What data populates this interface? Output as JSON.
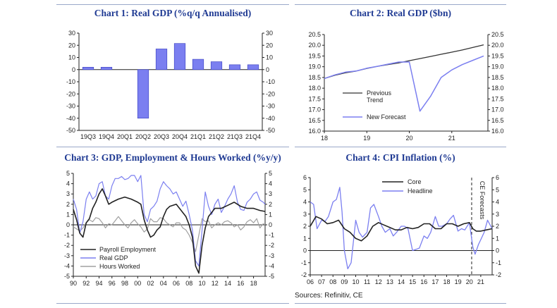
{
  "source_note": "Sources: Refinitiv, CE",
  "chart_data": [
    {
      "id": "c1",
      "type": "bar",
      "title": "Chart 1: Real GDP (%q/q Annualised)",
      "categories": [
        "19Q3",
        "19Q4",
        "20Q1",
        "20Q2",
        "20Q3",
        "20Q4",
        "21Q1",
        "21Q2",
        "21Q3",
        "21Q4"
      ],
      "values": [
        2.0,
        2.0,
        0,
        -40,
        17,
        21.5,
        8.5,
        6.5,
        4.0,
        4.0
      ],
      "ylim": [
        -50,
        30
      ],
      "yticks": [
        "30",
        "20",
        "10",
        "0",
        "-10",
        "-20",
        "-30",
        "-40",
        "-50"
      ],
      "bar_color": "#7b7ff0",
      "bar_border": "#3a3fbf"
    },
    {
      "id": "c2",
      "type": "line",
      "title": "Chart 2: Real GDP ($bn)",
      "xlim": [
        2018,
        2021.85
      ],
      "xticks": [
        "18",
        "19",
        "20",
        "21"
      ],
      "ylim": [
        16.0,
        20.5
      ],
      "yticks": [
        "20.5",
        "20.0",
        "19.5",
        "19.0",
        "18.5",
        "18.0",
        "17.5",
        "17.0",
        "16.5",
        "16.0"
      ],
      "legend": [
        "Previous Trend",
        "New Forecast"
      ],
      "series": [
        {
          "name": "Previous Trend",
          "color": "#333333",
          "x": [
            2018,
            2018.25,
            2018.5,
            2018.75,
            2019,
            2019.25,
            2019.5,
            2019.75,
            2020,
            2020.25,
            2020.5,
            2020.75,
            2021,
            2021.25,
            2021.5,
            2021.75
          ],
          "values": [
            18.45,
            18.6,
            18.72,
            18.8,
            18.92,
            19.02,
            19.1,
            19.18,
            19.28,
            19.38,
            19.48,
            19.58,
            19.68,
            19.78,
            19.9,
            20.02
          ]
        },
        {
          "name": "New Forecast",
          "color": "#7b7ff0",
          "x": [
            2018,
            2018.25,
            2018.5,
            2018.75,
            2019,
            2019.25,
            2019.5,
            2019.75,
            2020,
            2020.25,
            2020.5,
            2020.75,
            2021,
            2021.25,
            2021.5,
            2021.75
          ],
          "values": [
            18.45,
            18.62,
            18.75,
            18.8,
            18.93,
            19.02,
            19.12,
            19.22,
            19.22,
            16.93,
            17.62,
            18.5,
            18.85,
            19.1,
            19.3,
            19.5
          ]
        }
      ]
    },
    {
      "id": "c3",
      "type": "line",
      "title": "Chart 3: GDP, Employment & Hours Worked (%y/y)",
      "xlim": [
        1990,
        2019.8
      ],
      "xticks": [
        "90",
        "92",
        "94",
        "96",
        "98",
        "00",
        "02",
        "04",
        "06",
        "08",
        "10",
        "12",
        "14",
        "16",
        "18"
      ],
      "ylim": [
        -5,
        5
      ],
      "yticks": [
        "5",
        "4",
        "3",
        "2",
        "1",
        "0",
        "-1",
        "-2",
        "-3",
        "-4",
        "-5"
      ],
      "legend": [
        "Payroll Employment",
        "Real GDP",
        "Hours Worked"
      ],
      "series": [
        {
          "name": "Payroll Employment",
          "color": "#222222",
          "x": [
            1990,
            1990.5,
            1991,
            1991.5,
            1992,
            1992.5,
            1993,
            1993.5,
            1994,
            1994.5,
            1995,
            1995.5,
            1996,
            1997,
            1998,
            1999,
            2000,
            2000.5,
            2001,
            2001.5,
            2002,
            2002.5,
            2003,
            2003.5,
            2004,
            2004.5,
            2005,
            2006,
            2006.5,
            2007,
            2007.5,
            2008,
            2008.5,
            2009,
            2009.5,
            2010,
            2010.5,
            2011,
            2012,
            2013,
            2014,
            2015,
            2016,
            2017,
            2018,
            2019,
            2019.8
          ],
          "values": [
            1.5,
            0.5,
            -0.8,
            -1.2,
            0.2,
            0.6,
            1.6,
            2.2,
            3.0,
            3.5,
            2.8,
            2.0,
            2.2,
            2.5,
            2.7,
            2.5,
            2.2,
            2.0,
            0.5,
            -0.5,
            -1.2,
            -1.0,
            -0.5,
            -0.2,
            0.8,
            1.5,
            1.8,
            2.0,
            1.6,
            1.2,
            0.8,
            0.0,
            -1.2,
            -4.0,
            -4.7,
            -2.0,
            -0.3,
            0.8,
            1.6,
            1.6,
            1.9,
            2.2,
            1.8,
            1.6,
            1.6,
            1.4,
            1.3
          ]
        },
        {
          "name": "Real GDP",
          "color": "#7b7ff0",
          "x": [
            1990,
            1990.5,
            1991,
            1991.5,
            1992,
            1992.5,
            1993,
            1993.5,
            1994,
            1994.5,
            1995,
            1995.5,
            1996,
            1996.5,
            1997,
            1997.5,
            1998,
            1998.5,
            1999,
            1999.5,
            2000,
            2000.5,
            2001,
            2001.5,
            2002,
            2002.5,
            2003,
            2003.5,
            2004,
            2004.5,
            2005,
            2005.5,
            2006,
            2006.5,
            2007,
            2007.5,
            2008,
            2008.5,
            2009,
            2009.5,
            2010,
            2010.5,
            2011,
            2011.5,
            2012,
            2012.5,
            2013,
            2013.5,
            2014,
            2014.5,
            2015,
            2015.5,
            2016,
            2016.5,
            2017,
            2017.5,
            2018,
            2018.5,
            2019,
            2019.5,
            2019.8
          ],
          "values": [
            2.5,
            1.5,
            -0.8,
            0.3,
            2.5,
            3.2,
            2.5,
            2.8,
            4.0,
            4.2,
            2.8,
            2.5,
            3.8,
            4.5,
            4.5,
            4.7,
            4.4,
            4.5,
            4.8,
            4.8,
            4.2,
            4.8,
            1.0,
            0.3,
            1.5,
            1.8,
            2.3,
            3.5,
            4.2,
            3.8,
            3.5,
            3.0,
            3.2,
            2.5,
            1.8,
            2.3,
            1.0,
            -0.5,
            -3.5,
            -4.0,
            -0.5,
            3.2,
            1.8,
            1.0,
            2.0,
            2.5,
            1.2,
            1.8,
            2.5,
            3.0,
            3.8,
            2.2,
            1.5,
            1.4,
            2.2,
            2.5,
            3.0,
            3.2,
            2.4,
            2.2,
            2.0
          ]
        },
        {
          "name": "Hours Worked",
          "color": "#a0a0a0",
          "x": [
            1990,
            1990.5,
            1991,
            1991.5,
            1992,
            1992.5,
            1993,
            1993.5,
            1994,
            1994.5,
            1995,
            1995.5,
            1996,
            1996.5,
            1997,
            1997.5,
            1998,
            1998.5,
            1999,
            1999.5,
            2000,
            2000.5,
            2001,
            2001.5,
            2002,
            2002.5,
            2003,
            2003.5,
            2004,
            2004.5,
            2005,
            2005.5,
            2006,
            2006.5,
            2007,
            2007.5,
            2008,
            2008.5,
            2009,
            2009.5,
            2010,
            2010.5,
            2011,
            2011.5,
            2012,
            2012.5,
            2013,
            2013.5,
            2014,
            2014.5,
            2015,
            2015.5,
            2016,
            2016.5,
            2017,
            2017.5,
            2018,
            2018.5,
            2019,
            2019.5,
            2019.8
          ],
          "values": [
            -0.2,
            -0.4,
            -0.6,
            -0.3,
            0.2,
            0.5,
            0.3,
            0.7,
            0.6,
            0.2,
            -0.3,
            0.1,
            0.0,
            0.4,
            0.8,
            0.4,
            0.0,
            -0.3,
            0.2,
            0.5,
            0.1,
            -0.2,
            -0.7,
            -0.4,
            0.6,
            0.3,
            0.3,
            0.7,
            0.6,
            0.2,
            0.0,
            -0.2,
            0.2,
            0.2,
            -0.3,
            -0.5,
            -1.0,
            -1.7,
            -2.6,
            -1.0,
            0.6,
            0.3,
            0.4,
            -0.3,
            0.0,
            0.2,
            0.0,
            0.3,
            0.4,
            0.2,
            -0.2,
            0.0,
            -0.5,
            -0.2,
            0.3,
            0.5,
            0.2,
            0.6,
            -0.3,
            0.1,
            0.0
          ]
        }
      ]
    },
    {
      "id": "c4",
      "type": "line",
      "title": "Chart 4: CPI Inflation (%)",
      "xlim": [
        2006,
        2022
      ],
      "xticks": [
        "06",
        "07",
        "08",
        "09",
        "10",
        "11",
        "12",
        "13",
        "14",
        "15",
        "16",
        "17",
        "18",
        "19",
        "20",
        "21"
      ],
      "ylim": [
        -2,
        6
      ],
      "yticks": [
        "6",
        "5",
        "4",
        "3",
        "2",
        "1",
        "0",
        "-1",
        "-2"
      ],
      "legend": [
        "Core",
        "Headline"
      ],
      "annotation": "CE Forecasts",
      "forecast_x": 2020.2,
      "series": [
        {
          "name": "Core",
          "color": "#222222",
          "x": [
            2006,
            2006.5,
            2007,
            2007.5,
            2008,
            2008.5,
            2009,
            2009.5,
            2010,
            2010.5,
            2011,
            2011.5,
            2012,
            2012.5,
            2013,
            2013.5,
            2014,
            2014.5,
            2015,
            2015.5,
            2016,
            2016.5,
            2017,
            2017.5,
            2018,
            2018.5,
            2019,
            2019.5,
            2020,
            2020.3,
            2020.6,
            2021,
            2021.5,
            2022
          ],
          "values": [
            2.0,
            2.8,
            2.6,
            2.2,
            2.3,
            2.5,
            1.8,
            1.5,
            1.0,
            0.8,
            1.2,
            2.0,
            2.3,
            2.1,
            1.9,
            1.7,
            1.7,
            1.9,
            1.8,
            1.9,
            2.2,
            2.2,
            1.8,
            1.8,
            2.2,
            2.2,
            2.0,
            2.2,
            2.3,
            1.8,
            1.6,
            1.6,
            1.7,
            1.8
          ]
        },
        {
          "name": "Headline",
          "color": "#7b7ff0",
          "x": [
            2006,
            2006.3,
            2006.6,
            2007,
            2007.3,
            2007.6,
            2008,
            2008.3,
            2008.6,
            2008.8,
            2009,
            2009.3,
            2009.6,
            2010,
            2010.3,
            2010.6,
            2011,
            2011.3,
            2011.6,
            2012,
            2012.3,
            2012.6,
            2013,
            2013.3,
            2013.6,
            2014,
            2014.3,
            2014.6,
            2015,
            2015.3,
            2015.6,
            2016,
            2016.3,
            2016.6,
            2017,
            2017.3,
            2017.6,
            2018,
            2018.3,
            2018.6,
            2019,
            2019.3,
            2019.6,
            2020,
            2020.3,
            2020.5,
            2020.8,
            2021,
            2021.3,
            2021.6,
            2022
          ],
          "values": [
            4.0,
            3.8,
            1.8,
            2.5,
            2.4,
            2.8,
            4.0,
            4.2,
            5.2,
            3.2,
            0.0,
            -1.5,
            -1.0,
            2.5,
            1.5,
            1.1,
            1.5,
            3.5,
            3.8,
            2.8,
            2.0,
            1.5,
            1.8,
            1.2,
            1.5,
            2.0,
            2.0,
            1.8,
            0.0,
            0.1,
            0.2,
            1.2,
            1.0,
            1.5,
            2.8,
            2.0,
            2.0,
            2.2,
            2.6,
            2.9,
            1.6,
            1.8,
            1.7,
            2.3,
            0.3,
            -0.3,
            0.5,
            0.9,
            1.5,
            2.5,
            1.8
          ]
        }
      ]
    }
  ]
}
